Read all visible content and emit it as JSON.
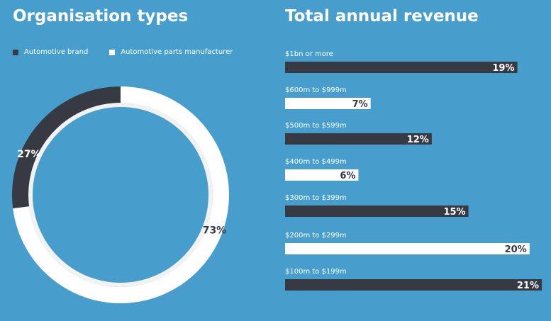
{
  "left_title": "Organisation types",
  "right_title": "Total annual revenue",
  "colors": {
    "background": "#479ECC",
    "dark": "#373943",
    "white": "#FFFFFF",
    "track": "#F2F2F2"
  },
  "legend": [
    {
      "label": "Automotive brand",
      "color": "#373943"
    },
    {
      "label": "Automotive parts manufacturer",
      "color": "#FFFFFF"
    }
  ],
  "chart_data": [
    {
      "type": "pie",
      "title": "Organisation types",
      "labels": [
        "Automotive brand",
        "Automotive parts manufacturer"
      ],
      "values": [
        27,
        73
      ],
      "value_labels": [
        "27%",
        "73%"
      ],
      "colors": [
        "#373943",
        "#FFFFFF"
      ],
      "legend": "top-left"
    },
    {
      "type": "bar",
      "orientation": "horizontal",
      "title": "Total annual revenue",
      "categories": [
        "$1bn or more",
        "$600m to $999m",
        "$500m to $599m",
        "$400m to $499m",
        "$300m to $399m",
        "$200m to $299m",
        "$100m to $199m"
      ],
      "values": [
        19,
        7,
        12,
        6,
        15,
        20,
        21
      ],
      "value_labels": [
        "19%",
        "7%",
        "12%",
        "6%",
        "15%",
        "20%",
        "21%"
      ],
      "bar_colors": [
        "#373943",
        "#FFFFFF",
        "#373943",
        "#FFFFFF",
        "#373943",
        "#FFFFFF",
        "#373943"
      ],
      "xlim": [
        0,
        21
      ]
    }
  ]
}
